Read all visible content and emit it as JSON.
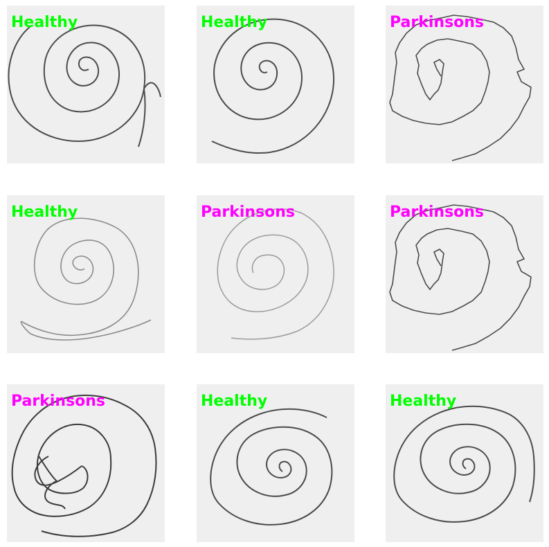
{
  "tiles": [
    {
      "label": "Healthy",
      "class": "healthy",
      "color": "#00ff00"
    },
    {
      "label": "Healthy",
      "class": "healthy",
      "color": "#00ff00"
    },
    {
      "label": "Parkinsons",
      "class": "parkinsons",
      "color": "#ff00ff"
    },
    {
      "label": "Healthy",
      "class": "healthy",
      "color": "#00ff00"
    },
    {
      "label": "Parkinsons",
      "class": "parkinsons",
      "color": "#ff00ff"
    },
    {
      "label": "Parkinsons",
      "class": "parkinsons",
      "color": "#ff00ff"
    },
    {
      "label": "Parkinsons",
      "class": "parkinsons",
      "color": "#ff00ff"
    },
    {
      "label": "Healthy",
      "class": "healthy",
      "color": "#00ff00"
    },
    {
      "label": "Healthy",
      "class": "healthy",
      "color": "#00ff00"
    }
  ]
}
